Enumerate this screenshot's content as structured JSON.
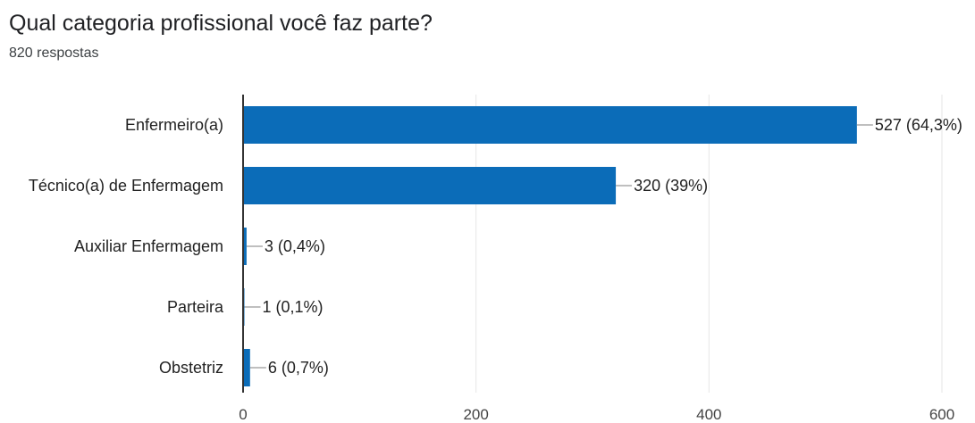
{
  "header": {
    "question": "Qual categoria profissional você faz parte?",
    "responses": "820 respostas"
  },
  "colors": {
    "bar": "#0b6cb8",
    "axis": "#333333",
    "grid": "#e6e6e6",
    "leader": "#999999"
  },
  "chart_data": {
    "type": "bar",
    "orientation": "horizontal",
    "categories": [
      "Enfermeiro(a)",
      "Técnico(a) de Enfermagem",
      "Auxiliar Enfermagem",
      "Parteira",
      "Obstetriz"
    ],
    "values": [
      527,
      320,
      3,
      1,
      6
    ],
    "data_labels": [
      "527 (64,3%)",
      "320 (39%)",
      "3 (0,4%)",
      "1 (0,1%)",
      "6 (0,7%)"
    ],
    "xlim": [
      0,
      600
    ],
    "xticks": [
      0,
      200,
      400,
      600
    ],
    "xtick_labels": [
      "0",
      "200",
      "400",
      "600"
    ],
    "grid": true,
    "legend": false
  }
}
